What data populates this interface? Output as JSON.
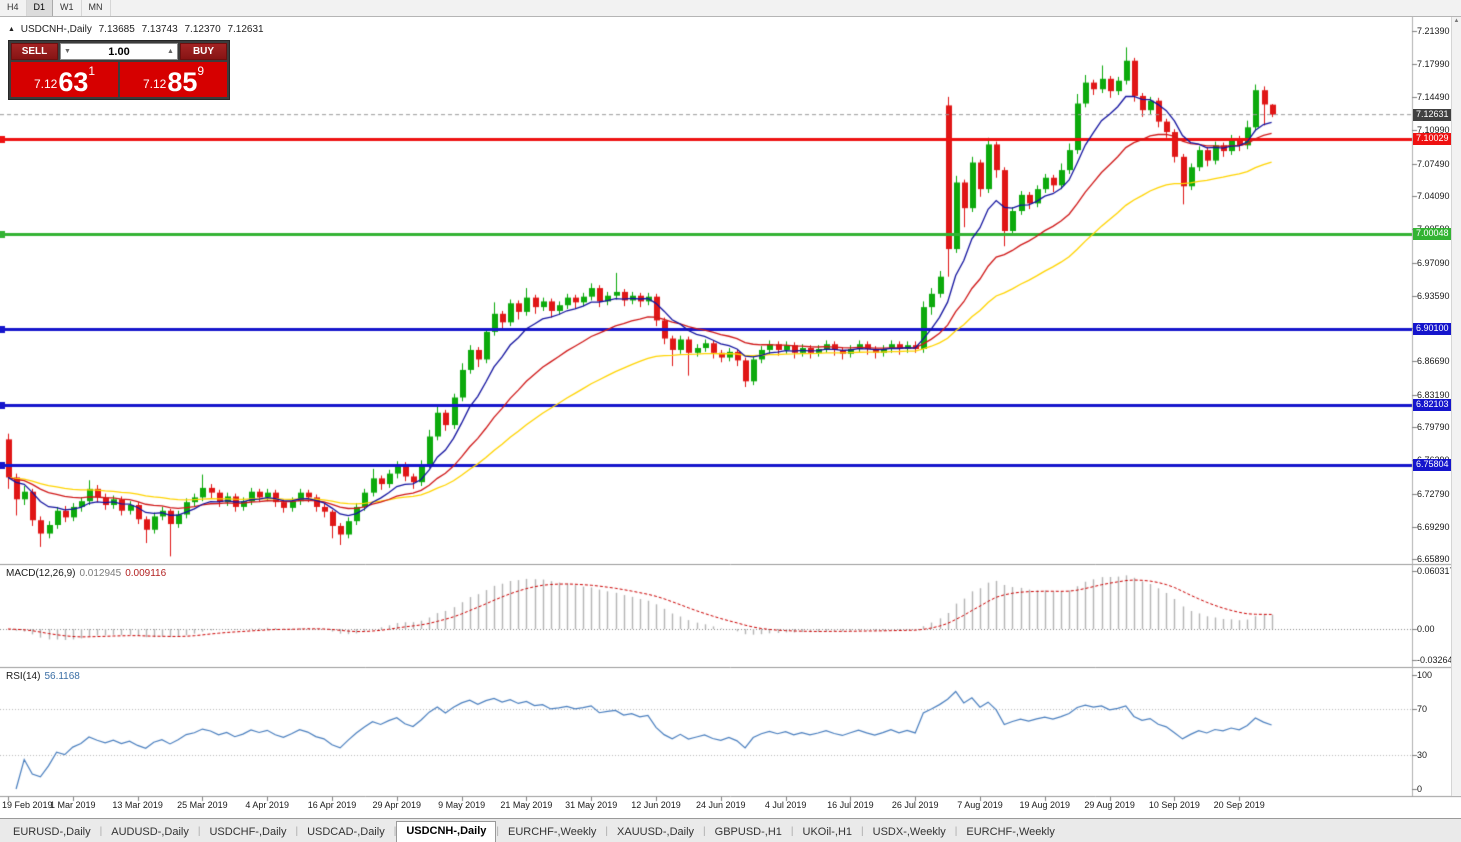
{
  "toolbar": {
    "timeframes": [
      {
        "label": "H4",
        "active": false
      },
      {
        "label": "D1",
        "active": true
      },
      {
        "label": "W1",
        "active": false
      },
      {
        "label": "MN",
        "active": false
      }
    ]
  },
  "header": {
    "collapse_icon": "▲",
    "symbol": "USDCNH-,Daily",
    "open": "7.13685",
    "high": "7.13743",
    "low": "7.12370",
    "close": "7.12631"
  },
  "trade_panel": {
    "sell_label": "SELL",
    "buy_label": "BUY",
    "volume": "1.00",
    "bid": {
      "small": "7.12",
      "big": "63",
      "sup": "1"
    },
    "ask": {
      "small": "7.12",
      "big": "85",
      "sup": "9"
    }
  },
  "macd": {
    "name": "MACD(12,26,9)",
    "value_main": "0.012945",
    "value_signal": "0.009116",
    "axis": [
      "0.060317",
      "0.00",
      "-0.032648"
    ],
    "params": {
      "fast": 12,
      "slow": 26,
      "signal": 9
    }
  },
  "rsi": {
    "name": "RSI(14)",
    "value": "56.1168",
    "axis": [
      "100",
      "70",
      "30",
      "0"
    ],
    "levels": [
      70,
      30
    ],
    "period": 14
  },
  "tab_bar": {
    "separator": "|",
    "tabs": [
      {
        "label": "EURUSD-,Daily",
        "active": false
      },
      {
        "label": "AUDUSD-,Daily",
        "active": false
      },
      {
        "label": "USDCHF-,Daily",
        "active": false
      },
      {
        "label": "USDCAD-,Daily",
        "active": false
      },
      {
        "label": "USDCNH-,Daily",
        "active": true
      },
      {
        "label": "EURCHF-,Weekly",
        "active": false
      },
      {
        "label": "XAUUSD-,Daily",
        "active": false
      },
      {
        "label": "GBPUSD-,H1",
        "active": false
      },
      {
        "label": "UKOil-,H1",
        "active": false
      },
      {
        "label": "USDX-,Weekly",
        "active": false
      },
      {
        "label": "EURCHF-,Weekly",
        "active": false
      }
    ]
  },
  "chart_data": {
    "type": "candlestick",
    "symbol": "USDCNH-,Daily",
    "timeframe": "Daily",
    "price_range": [
      6.654,
      7.23
    ],
    "price_axis_ticks": [
      "7.21390",
      "7.17990",
      "7.14490",
      "7.10990",
      "7.07490",
      "7.04090",
      "7.00590",
      "6.97090",
      "6.93590",
      "6.90190",
      "6.86690",
      "6.83190",
      "6.79790",
      "6.76290",
      "6.72790",
      "6.69290",
      "6.65890"
    ],
    "dates": [
      "19 Feb 2019",
      "1 Mar 2019",
      "13 Mar 2019",
      "25 Mar 2019",
      "4 Apr 2019",
      "16 Apr 2019",
      "29 Apr 2019",
      "9 May 2019",
      "21 May 2019",
      "31 May 2019",
      "12 Jun 2019",
      "24 Jun 2019",
      "4 Jul 2019",
      "16 Jul 2019",
      "26 Jul 2019",
      "7 Aug 2019",
      "19 Aug 2019",
      "29 Aug 2019",
      "10 Sep 2019",
      "20 Sep 2019"
    ],
    "levels": [
      {
        "label": "7.10029",
        "value": 7.10029,
        "color": "#ee1111",
        "width": 3
      },
      {
        "label": "7.00048",
        "value": 7.00048,
        "color": "#33b333",
        "width": 3
      },
      {
        "label": "6.90100",
        "value": 6.901,
        "color": "#1515cc",
        "width": 3
      },
      {
        "label": "6.82103",
        "value": 6.82103,
        "color": "#1515cc",
        "width": 3
      },
      {
        "label": "6.75804",
        "value": 6.75804,
        "color": "#1515cc",
        "width": 3
      }
    ],
    "current_price": {
      "label": "7.12631",
      "value": 7.12631
    },
    "moving_averages": [
      {
        "period": 40,
        "color": "#ffd400"
      },
      {
        "period": 20,
        "color": "#d01818"
      },
      {
        "period": 8,
        "color": "#1414a0"
      }
    ],
    "colors": {
      "bull": "#0caa0c",
      "bear": "#e01616",
      "histogram": "#b4b4b4",
      "signal": "#cc0000",
      "rsi": "#4a7fbf"
    },
    "candles": [
      [
        6.785,
        6.791,
        6.733,
        6.745
      ],
      [
        6.745,
        6.749,
        6.705,
        6.722
      ],
      [
        6.722,
        6.736,
        6.716,
        6.73
      ],
      [
        6.73,
        6.733,
        6.694,
        6.7
      ],
      [
        6.7,
        6.704,
        6.672,
        6.686
      ],
      [
        6.686,
        6.699,
        6.681,
        6.695
      ],
      [
        6.695,
        6.714,
        6.691,
        6.71
      ],
      [
        6.71,
        6.715,
        6.698,
        6.703
      ],
      [
        6.703,
        6.718,
        6.699,
        6.714
      ],
      [
        6.714,
        6.724,
        6.709,
        6.72
      ],
      [
        6.72,
        6.742,
        6.716,
        6.733
      ],
      [
        6.733,
        6.737,
        6.719,
        6.724
      ],
      [
        6.724,
        6.728,
        6.711,
        6.716
      ],
      [
        6.716,
        6.726,
        6.712,
        6.722
      ],
      [
        6.722,
        6.725,
        6.705,
        6.71
      ],
      [
        6.71,
        6.72,
        6.706,
        6.716
      ],
      [
        6.716,
        6.719,
        6.696,
        6.701
      ],
      [
        6.701,
        6.704,
        6.676,
        6.69
      ],
      [
        6.69,
        6.708,
        6.686,
        6.704
      ],
      [
        6.704,
        6.714,
        6.7,
        6.71
      ],
      [
        6.71,
        6.712,
        6.662,
        6.696
      ],
      [
        6.696,
        6.71,
        6.692,
        6.706
      ],
      [
        6.706,
        6.723,
        6.702,
        6.719
      ],
      [
        6.719,
        6.728,
        6.714,
        6.724
      ],
      [
        6.724,
        6.748,
        6.72,
        6.734
      ],
      [
        6.734,
        6.738,
        6.723,
        6.729
      ],
      [
        6.729,
        6.732,
        6.714,
        6.719
      ],
      [
        6.719,
        6.729,
        6.715,
        6.725
      ],
      [
        6.725,
        6.728,
        6.709,
        6.714
      ],
      [
        6.714,
        6.724,
        6.71,
        6.72
      ],
      [
        6.72,
        6.734,
        6.716,
        6.73
      ],
      [
        6.73,
        6.733,
        6.719,
        6.724
      ],
      [
        6.724,
        6.733,
        6.72,
        6.729
      ],
      [
        6.729,
        6.732,
        6.714,
        6.719
      ],
      [
        6.719,
        6.722,
        6.708,
        6.713
      ],
      [
        6.713,
        6.724,
        6.709,
        6.72
      ],
      [
        6.72,
        6.733,
        6.716,
        6.729
      ],
      [
        6.729,
        6.732,
        6.719,
        6.724
      ],
      [
        6.724,
        6.727,
        6.709,
        6.714
      ],
      [
        6.714,
        6.717,
        6.703,
        6.709
      ],
      [
        6.709,
        6.711,
        6.681,
        6.694
      ],
      [
        6.694,
        6.697,
        6.674,
        6.685
      ],
      [
        6.685,
        6.703,
        6.681,
        6.699
      ],
      [
        6.699,
        6.718,
        6.695,
        6.714
      ],
      [
        6.714,
        6.733,
        6.71,
        6.729
      ],
      [
        6.729,
        6.754,
        6.725,
        6.744
      ],
      [
        6.744,
        6.747,
        6.732,
        6.738
      ],
      [
        6.738,
        6.753,
        6.734,
        6.749
      ],
      [
        6.749,
        6.762,
        6.744,
        6.758
      ],
      [
        6.758,
        6.761,
        6.741,
        6.746
      ],
      [
        6.746,
        6.749,
        6.733,
        6.74
      ],
      [
        6.74,
        6.763,
        6.736,
        6.759
      ],
      [
        6.759,
        6.795,
        6.755,
        6.788
      ],
      [
        6.788,
        6.821,
        6.784,
        6.813
      ],
      [
        6.813,
        6.816,
        6.794,
        6.8
      ],
      [
        6.8,
        6.833,
        6.796,
        6.829
      ],
      [
        6.829,
        6.865,
        6.825,
        6.858
      ],
      [
        6.858,
        6.884,
        6.854,
        6.879
      ],
      [
        6.879,
        6.882,
        6.861,
        6.869
      ],
      [
        6.869,
        6.902,
        6.865,
        6.898
      ],
      [
        6.898,
        6.929,
        6.894,
        6.917
      ],
      [
        6.917,
        6.92,
        6.9,
        6.908
      ],
      [
        6.908,
        6.932,
        6.904,
        6.928
      ],
      [
        6.928,
        6.931,
        6.911,
        6.919
      ],
      [
        6.919,
        6.944,
        6.915,
        6.934
      ],
      [
        6.934,
        6.937,
        6.917,
        6.924
      ],
      [
        6.924,
        6.934,
        6.92,
        6.93
      ],
      [
        6.93,
        6.933,
        6.913,
        6.92
      ],
      [
        6.92,
        6.93,
        6.916,
        6.926
      ],
      [
        6.926,
        6.938,
        6.922,
        6.934
      ],
      [
        6.934,
        6.937,
        6.922,
        6.929
      ],
      [
        6.929,
        6.939,
        6.925,
        6.935
      ],
      [
        6.935,
        6.949,
        6.931,
        6.944
      ],
      [
        6.944,
        6.947,
        6.924,
        6.93
      ],
      [
        6.93,
        6.94,
        6.926,
        6.936
      ],
      [
        6.936,
        6.96,
        6.932,
        6.94
      ],
      [
        6.94,
        6.943,
        6.925,
        6.931
      ],
      [
        6.931,
        6.94,
        6.927,
        6.936
      ],
      [
        6.936,
        6.939,
        6.924,
        6.93
      ],
      [
        6.93,
        6.939,
        6.926,
        6.935
      ],
      [
        6.935,
        6.938,
        6.904,
        6.91
      ],
      [
        6.91,
        6.913,
        6.885,
        6.891
      ],
      [
        6.891,
        6.894,
        6.862,
        6.879
      ],
      [
        6.879,
        6.894,
        6.875,
        6.89
      ],
      [
        6.89,
        6.893,
        6.852,
        6.876
      ],
      [
        6.876,
        6.885,
        6.872,
        6.881
      ],
      [
        6.881,
        6.89,
        6.877,
        6.886
      ],
      [
        6.886,
        6.889,
        6.87,
        6.876
      ],
      [
        6.876,
        6.879,
        6.866,
        6.871
      ],
      [
        6.871,
        6.881,
        6.867,
        6.877
      ],
      [
        6.877,
        6.88,
        6.862,
        6.868
      ],
      [
        6.868,
        6.871,
        6.84,
        6.846
      ],
      [
        6.846,
        6.872,
        6.842,
        6.869
      ],
      [
        6.869,
        6.883,
        6.865,
        6.879
      ],
      [
        6.879,
        6.889,
        6.875,
        6.885
      ],
      [
        6.885,
        6.888,
        6.873,
        6.879
      ],
      [
        6.879,
        6.888,
        6.875,
        6.884
      ],
      [
        6.884,
        6.887,
        6.87,
        6.876
      ],
      [
        6.876,
        6.885,
        6.872,
        6.881
      ],
      [
        6.881,
        6.884,
        6.87,
        6.876
      ],
      [
        6.876,
        6.884,
        6.872,
        6.88
      ],
      [
        6.88,
        6.889,
        6.876,
        6.885
      ],
      [
        6.885,
        6.888,
        6.873,
        6.879
      ],
      [
        6.879,
        6.882,
        6.869,
        6.875
      ],
      [
        6.875,
        6.884,
        6.871,
        6.88
      ],
      [
        6.88,
        6.889,
        6.876,
        6.885
      ],
      [
        6.885,
        6.888,
        6.874,
        6.88
      ],
      [
        6.88,
        6.883,
        6.87,
        6.876
      ],
      [
        6.876,
        6.884,
        6.872,
        6.88
      ],
      [
        6.88,
        6.889,
        6.876,
        6.885
      ],
      [
        6.885,
        6.888,
        6.874,
        6.88
      ],
      [
        6.88,
        6.888,
        6.876,
        6.884
      ],
      [
        6.884,
        6.888,
        6.876,
        6.88
      ],
      [
        6.88,
        6.93,
        6.876,
        6.924
      ],
      [
        6.924,
        6.944,
        6.916,
        6.938
      ],
      [
        6.938,
        6.962,
        6.934,
        6.956
      ],
      [
        7.136,
        7.145,
        6.956,
        6.985
      ],
      [
        6.985,
        7.062,
        6.981,
        7.055
      ],
      [
        7.055,
        7.058,
        7.008,
        7.028
      ],
      [
        7.028,
        7.082,
        7.024,
        7.076
      ],
      [
        7.076,
        7.079,
        7.04,
        7.048
      ],
      [
        7.048,
        7.102,
        7.044,
        7.095
      ],
      [
        7.095,
        7.098,
        7.06,
        7.068
      ],
      [
        7.068,
        7.071,
        6.988,
        7.004
      ],
      [
        7.004,
        7.029,
        7.0,
        7.025
      ],
      [
        7.025,
        7.046,
        7.021,
        7.042
      ],
      [
        7.042,
        7.045,
        7.027,
        7.033
      ],
      [
        7.033,
        7.052,
        7.029,
        7.048
      ],
      [
        7.048,
        7.064,
        7.044,
        7.06
      ],
      [
        7.06,
        7.063,
        7.045,
        7.052
      ],
      [
        7.052,
        7.075,
        7.048,
        7.068
      ],
      [
        7.068,
        7.096,
        7.064,
        7.089
      ],
      [
        7.089,
        7.148,
        7.085,
        7.138
      ],
      [
        7.138,
        7.168,
        7.134,
        7.16
      ],
      [
        7.16,
        7.163,
        7.147,
        7.153
      ],
      [
        7.153,
        7.178,
        7.149,
        7.164
      ],
      [
        7.164,
        7.167,
        7.144,
        7.151
      ],
      [
        7.151,
        7.166,
        7.147,
        7.162
      ],
      [
        7.162,
        7.197,
        7.158,
        7.183
      ],
      [
        7.183,
        7.186,
        7.14,
        7.146
      ],
      [
        7.146,
        7.149,
        7.124,
        7.131
      ],
      [
        7.131,
        7.145,
        7.127,
        7.141
      ],
      [
        7.141,
        7.144,
        7.113,
        7.119
      ],
      [
        7.119,
        7.122,
        7.102,
        7.108
      ],
      [
        7.108,
        7.111,
        7.076,
        7.082
      ],
      [
        7.082,
        7.085,
        7.032,
        7.051
      ],
      [
        7.051,
        7.075,
        7.047,
        7.071
      ],
      [
        7.071,
        7.093,
        7.067,
        7.089
      ],
      [
        7.089,
        7.092,
        7.072,
        7.078
      ],
      [
        7.078,
        7.098,
        7.074,
        7.094
      ],
      [
        7.094,
        7.097,
        7.082,
        7.088
      ],
      [
        7.088,
        7.105,
        7.084,
        7.101
      ],
      [
        7.101,
        7.104,
        7.088,
        7.094
      ],
      [
        7.094,
        7.12,
        7.09,
        7.113
      ],
      [
        7.113,
        7.158,
        7.109,
        7.152
      ],
      [
        7.152,
        7.156,
        7.115,
        7.137
      ],
      [
        7.1368,
        7.1374,
        7.1237,
        7.1263
      ]
    ]
  }
}
